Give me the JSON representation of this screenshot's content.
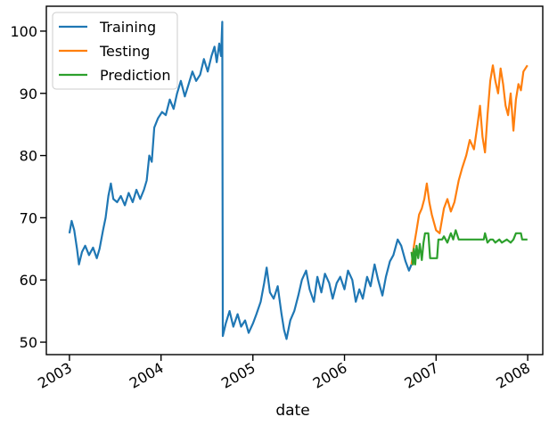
{
  "chart_data": {
    "type": "line",
    "xlabel": "date",
    "ylabel": "",
    "xlim": [
      "2002-10-01",
      "2008-03-01"
    ],
    "ylim": [
      48,
      104
    ],
    "x_ticks": [
      "2003",
      "2004",
      "2005",
      "2006",
      "2007",
      "2008"
    ],
    "y_ticks": [
      50,
      60,
      70,
      80,
      90,
      100
    ],
    "grid": false,
    "legend": "top-left",
    "series": [
      {
        "name": "Training",
        "color": "#1f77b4",
        "points": [
          [
            "2003-01-01",
            67.5
          ],
          [
            "2003-01-10",
            69.5
          ],
          [
            "2003-01-20",
            68.0
          ],
          [
            "2003-01-31",
            65.0
          ],
          [
            "2003-02-08",
            62.5
          ],
          [
            "2003-02-20",
            64.5
          ],
          [
            "2003-03-05",
            65.5
          ],
          [
            "2003-03-20",
            64.0
          ],
          [
            "2003-04-05",
            65.2
          ],
          [
            "2003-04-20",
            63.5
          ],
          [
            "2003-05-01",
            65.0
          ],
          [
            "2003-05-15",
            68.0
          ],
          [
            "2003-05-25",
            70.0
          ],
          [
            "2003-06-05",
            73.5
          ],
          [
            "2003-06-15",
            75.5
          ],
          [
            "2003-06-25",
            73.0
          ],
          [
            "2003-07-10",
            72.5
          ],
          [
            "2003-07-25",
            73.5
          ],
          [
            "2003-08-10",
            72.0
          ],
          [
            "2003-08-25",
            74.0
          ],
          [
            "2003-09-10",
            72.5
          ],
          [
            "2003-09-25",
            74.5
          ],
          [
            "2003-10-10",
            73.0
          ],
          [
            "2003-10-25",
            74.5
          ],
          [
            "2003-11-05",
            76.0
          ],
          [
            "2003-11-15",
            80.0
          ],
          [
            "2003-11-25",
            79.0
          ],
          [
            "2003-12-05",
            84.5
          ],
          [
            "2003-12-20",
            86.0
          ],
          [
            "2004-01-05",
            87.0
          ],
          [
            "2004-01-20",
            86.5
          ],
          [
            "2004-02-05",
            89.0
          ],
          [
            "2004-02-20",
            87.5
          ],
          [
            "2004-03-05",
            90.0
          ],
          [
            "2004-03-20",
            92.0
          ],
          [
            "2004-04-05",
            89.5
          ],
          [
            "2004-04-20",
            91.5
          ],
          [
            "2004-05-05",
            93.5
          ],
          [
            "2004-05-20",
            92.0
          ],
          [
            "2004-06-05",
            93.0
          ],
          [
            "2004-06-20",
            95.5
          ],
          [
            "2004-07-05",
            93.5
          ],
          [
            "2004-07-20",
            96.0
          ],
          [
            "2004-08-01",
            97.5
          ],
          [
            "2004-08-10",
            95.0
          ],
          [
            "2004-08-20",
            98.0
          ],
          [
            "2004-08-27",
            96.0
          ],
          [
            "2004-09-01",
            101.5
          ],
          [
            "2004-09-03",
            51.0
          ],
          [
            "2004-09-15",
            53.0
          ],
          [
            "2004-09-30",
            55.0
          ],
          [
            "2004-10-15",
            52.5
          ],
          [
            "2004-11-01",
            54.5
          ],
          [
            "2004-11-15",
            52.5
          ],
          [
            "2004-12-01",
            53.5
          ],
          [
            "2004-12-15",
            51.5
          ],
          [
            "2005-01-01",
            53.0
          ],
          [
            "2005-01-15",
            54.5
          ],
          [
            "2005-02-01",
            56.5
          ],
          [
            "2005-02-15",
            59.5
          ],
          [
            "2005-02-25",
            62.0
          ],
          [
            "2005-03-10",
            58.0
          ],
          [
            "2005-03-25",
            57.0
          ],
          [
            "2005-04-10",
            59.0
          ],
          [
            "2005-04-25",
            54.5
          ],
          [
            "2005-05-05",
            52.0
          ],
          [
            "2005-05-15",
            50.5
          ],
          [
            "2005-05-30",
            53.5
          ],
          [
            "2005-06-15",
            55.0
          ],
          [
            "2005-07-01",
            57.5
          ],
          [
            "2005-07-15",
            60.0
          ],
          [
            "2005-08-01",
            61.5
          ],
          [
            "2005-08-15",
            58.5
          ],
          [
            "2005-09-01",
            56.5
          ],
          [
            "2005-09-15",
            60.5
          ],
          [
            "2005-10-01",
            58.0
          ],
          [
            "2005-10-15",
            61.0
          ],
          [
            "2005-11-01",
            59.5
          ],
          [
            "2005-11-15",
            57.0
          ],
          [
            "2005-12-01",
            59.5
          ],
          [
            "2005-12-15",
            60.5
          ],
          [
            "2006-01-01",
            58.5
          ],
          [
            "2006-01-15",
            61.5
          ],
          [
            "2006-02-01",
            60.0
          ],
          [
            "2006-02-15",
            56.5
          ],
          [
            "2006-03-01",
            58.5
          ],
          [
            "2006-03-15",
            57.0
          ],
          [
            "2006-04-01",
            60.5
          ],
          [
            "2006-04-15",
            59.0
          ],
          [
            "2006-05-01",
            62.5
          ],
          [
            "2006-05-15",
            60.0
          ],
          [
            "2006-06-01",
            57.5
          ],
          [
            "2006-06-15",
            60.5
          ],
          [
            "2006-07-01",
            63.0
          ],
          [
            "2006-07-15",
            64.0
          ],
          [
            "2006-08-01",
            66.5
          ],
          [
            "2006-08-15",
            65.5
          ],
          [
            "2006-09-01",
            63.0
          ],
          [
            "2006-09-15",
            61.5
          ],
          [
            "2006-09-25",
            62.5
          ]
        ]
      },
      {
        "name": "Testing",
        "color": "#ff7f0e",
        "points": [
          [
            "2006-09-25",
            62.5
          ],
          [
            "2006-10-05",
            65.5
          ],
          [
            "2006-10-15",
            68.0
          ],
          [
            "2006-10-25",
            70.5
          ],
          [
            "2006-11-05",
            71.5
          ],
          [
            "2006-11-15",
            73.0
          ],
          [
            "2006-11-25",
            75.5
          ],
          [
            "2006-12-05",
            72.5
          ],
          [
            "2006-12-15",
            70.5
          ],
          [
            "2007-01-01",
            68.0
          ],
          [
            "2007-01-15",
            67.5
          ],
          [
            "2007-02-01",
            71.5
          ],
          [
            "2007-02-15",
            73.0
          ],
          [
            "2007-03-01",
            71.0
          ],
          [
            "2007-03-15",
            72.5
          ],
          [
            "2007-04-01",
            76.0
          ],
          [
            "2007-04-15",
            78.0
          ],
          [
            "2007-05-01",
            80.0
          ],
          [
            "2007-05-15",
            82.5
          ],
          [
            "2007-06-01",
            81.0
          ],
          [
            "2007-06-15",
            85.0
          ],
          [
            "2007-06-25",
            88.0
          ],
          [
            "2007-07-05",
            83.0
          ],
          [
            "2007-07-15",
            80.5
          ],
          [
            "2007-07-25",
            86.5
          ],
          [
            "2007-08-05",
            92.0
          ],
          [
            "2007-08-15",
            94.5
          ],
          [
            "2007-08-25",
            92.0
          ],
          [
            "2007-09-05",
            90.0
          ],
          [
            "2007-09-15",
            94.0
          ],
          [
            "2007-09-25",
            91.5
          ],
          [
            "2007-10-05",
            88.0
          ],
          [
            "2007-10-15",
            86.5
          ],
          [
            "2007-10-25",
            90.0
          ],
          [
            "2007-11-05",
            84.0
          ],
          [
            "2007-11-15",
            89.0
          ],
          [
            "2007-11-25",
            91.5
          ],
          [
            "2007-12-05",
            90.5
          ],
          [
            "2007-12-15",
            93.5
          ],
          [
            "2007-12-31",
            94.5
          ]
        ]
      },
      {
        "name": "Prediction",
        "color": "#2ca02c",
        "points": [
          [
            "2006-09-25",
            64.5
          ],
          [
            "2006-10-01",
            62.5
          ],
          [
            "2006-10-05",
            65.0
          ],
          [
            "2006-10-10",
            62.5
          ],
          [
            "2006-10-15",
            65.5
          ],
          [
            "2006-10-22",
            63.5
          ],
          [
            "2006-10-28",
            65.8
          ],
          [
            "2006-11-05",
            63.2
          ],
          [
            "2006-11-12",
            66.0
          ],
          [
            "2006-11-18",
            67.5
          ],
          [
            "2006-12-01",
            67.5
          ],
          [
            "2006-12-08",
            63.5
          ],
          [
            "2007-01-05",
            63.5
          ],
          [
            "2007-01-10",
            66.5
          ],
          [
            "2007-01-25",
            66.5
          ],
          [
            "2007-02-01",
            67.0
          ],
          [
            "2007-02-15",
            66.0
          ],
          [
            "2007-03-01",
            67.5
          ],
          [
            "2007-03-10",
            66.5
          ],
          [
            "2007-03-20",
            68.0
          ],
          [
            "2007-04-01",
            66.5
          ],
          [
            "2007-05-01",
            66.5
          ],
          [
            "2007-05-15",
            66.5
          ],
          [
            "2007-06-01",
            66.5
          ],
          [
            "2007-06-20",
            66.5
          ],
          [
            "2007-07-10",
            66.5
          ],
          [
            "2007-07-15",
            67.5
          ],
          [
            "2007-07-25",
            66.0
          ],
          [
            "2007-08-05",
            66.5
          ],
          [
            "2007-08-15",
            66.5
          ],
          [
            "2007-08-25",
            66.0
          ],
          [
            "2007-09-10",
            66.5
          ],
          [
            "2007-09-20",
            66.0
          ],
          [
            "2007-10-10",
            66.5
          ],
          [
            "2007-10-25",
            66.0
          ],
          [
            "2007-11-05",
            66.5
          ],
          [
            "2007-11-15",
            67.5
          ],
          [
            "2007-12-05",
            67.5
          ],
          [
            "2007-12-10",
            66.5
          ],
          [
            "2007-12-31",
            66.5
          ]
        ]
      }
    ]
  }
}
